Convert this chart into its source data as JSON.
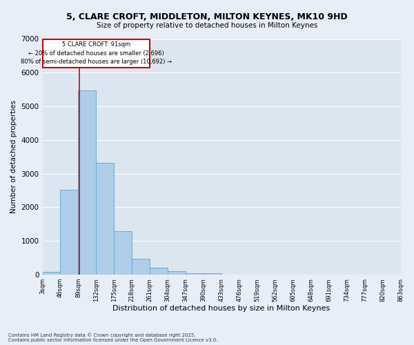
{
  "title1": "5, CLARE CROFT, MIDDLETON, MILTON KEYNES, MK10 9HD",
  "title2": "Size of property relative to detached houses in Milton Keynes",
  "xlabel": "Distribution of detached houses by size in Milton Keynes",
  "ylabel": "Number of detached properties",
  "bar_color": "#aecde8",
  "bar_edge_color": "#6aaad4",
  "fig_facecolor": "#e8eef8",
  "ax_facecolor": "#dce6f0",
  "grid_color": "#ffffff",
  "bins": [
    "3sqm",
    "46sqm",
    "89sqm",
    "132sqm",
    "175sqm",
    "218sqm",
    "261sqm",
    "304sqm",
    "347sqm",
    "390sqm",
    "433sqm",
    "476sqm",
    "519sqm",
    "562sqm",
    "605sqm",
    "648sqm",
    "691sqm",
    "734sqm",
    "777sqm",
    "820sqm",
    "863sqm"
  ],
  "values": [
    90,
    2520,
    5480,
    3320,
    1290,
    480,
    215,
    95,
    45,
    40,
    0,
    0,
    0,
    0,
    0,
    0,
    0,
    0,
    0,
    0
  ],
  "ylim": [
    0,
    7000
  ],
  "yticks": [
    0,
    1000,
    2000,
    3000,
    4000,
    5000,
    6000,
    7000
  ],
  "property_label": "5 CLARE CROFT: 91sqm",
  "pct_smaller": "← 20% of detached houses are smaller (2,696)",
  "pct_larger": "80% of semi-detached houses are larger (10,692) →",
  "vline_color": "#cc0000",
  "annotation_box_color": "#cc0000",
  "footer1": "Contains HM Land Registry data © Crown copyright and database right 2025.",
  "footer2": "Contains public sector information licensed under the Open Government Licence v3.0.",
  "bin_width": 43,
  "num_bins": 20,
  "vline_x": 91
}
